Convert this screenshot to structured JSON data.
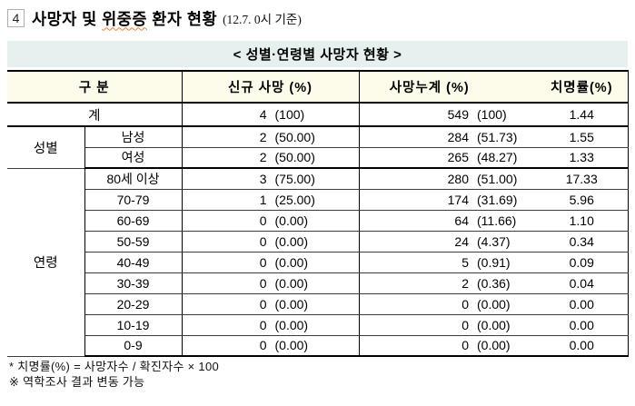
{
  "title": {
    "box_number": "4",
    "part1": "사망자 및 ",
    "part2": "위중증",
    "part3": " 환자 현황",
    "date_note": "(12.7. 0시 기준)"
  },
  "subtitle": "< 성별·연령별 사망자 현황 >",
  "table": {
    "headers": {
      "category": "구 분",
      "new_deaths": "신규 사망  (%)",
      "cumulative_deaths": "사망누계  (%)",
      "fatality_rate": "치명률(%)"
    },
    "total": {
      "label": "계",
      "new": "4",
      "new_pct": "(100)",
      "cum": "549",
      "cum_pct": "(100)",
      "rate": "1.44"
    },
    "groups": [
      {
        "label": "성별",
        "rows": [
          {
            "label": "남성",
            "new": "2",
            "new_pct": "(50.00)",
            "cum": "284",
            "cum_pct": "(51.73)",
            "rate": "1.55"
          },
          {
            "label": "여성",
            "new": "2",
            "new_pct": "(50.00)",
            "cum": "265",
            "cum_pct": "(48.27)",
            "rate": "1.33"
          }
        ]
      },
      {
        "label": "연령",
        "rows": [
          {
            "label": "80세 이상",
            "new": "3",
            "new_pct": "(75.00)",
            "cum": "280",
            "cum_pct": "(51.00)",
            "rate": "17.33"
          },
          {
            "label": "70-79",
            "new": "1",
            "new_pct": "(25.00)",
            "cum": "174",
            "cum_pct": "(31.69)",
            "rate": "5.96"
          },
          {
            "label": "60-69",
            "new": "0",
            "new_pct": "(0.00)",
            "cum": "64",
            "cum_pct": "(11.66)",
            "rate": "1.10"
          },
          {
            "label": "50-59",
            "new": "0",
            "new_pct": "(0.00)",
            "cum": "24",
            "cum_pct": "(4.37)",
            "rate": "0.34"
          },
          {
            "label": "40-49",
            "new": "0",
            "new_pct": "(0.00)",
            "cum": "5",
            "cum_pct": "(0.91)",
            "rate": "0.09"
          },
          {
            "label": "30-39",
            "new": "0",
            "new_pct": "(0.00)",
            "cum": "2",
            "cum_pct": "(0.36)",
            "rate": "0.04"
          },
          {
            "label": "20-29",
            "new": "0",
            "new_pct": "(0.00)",
            "cum": "0",
            "cum_pct": "(0.00)",
            "rate": "0.00"
          },
          {
            "label": "10-19",
            "new": "0",
            "new_pct": "(0.00)",
            "cum": "0",
            "cum_pct": "(0.00)",
            "rate": "0.00"
          },
          {
            "label": "0-9",
            "new": "0",
            "new_pct": "(0.00)",
            "cum": "0",
            "cum_pct": "(0.00)",
            "rate": "0.00"
          }
        ]
      }
    ]
  },
  "notes": [
    "* 치명률(%) = 사망자수 / 확진자수 × 100",
    "※ 역학조사 결과 변동 가능"
  ],
  "colors": {
    "subtitle_bg": "#e6f1ef",
    "header_bg": "#fdfceb",
    "border": "#000000",
    "squiggle": "#e87f35"
  }
}
